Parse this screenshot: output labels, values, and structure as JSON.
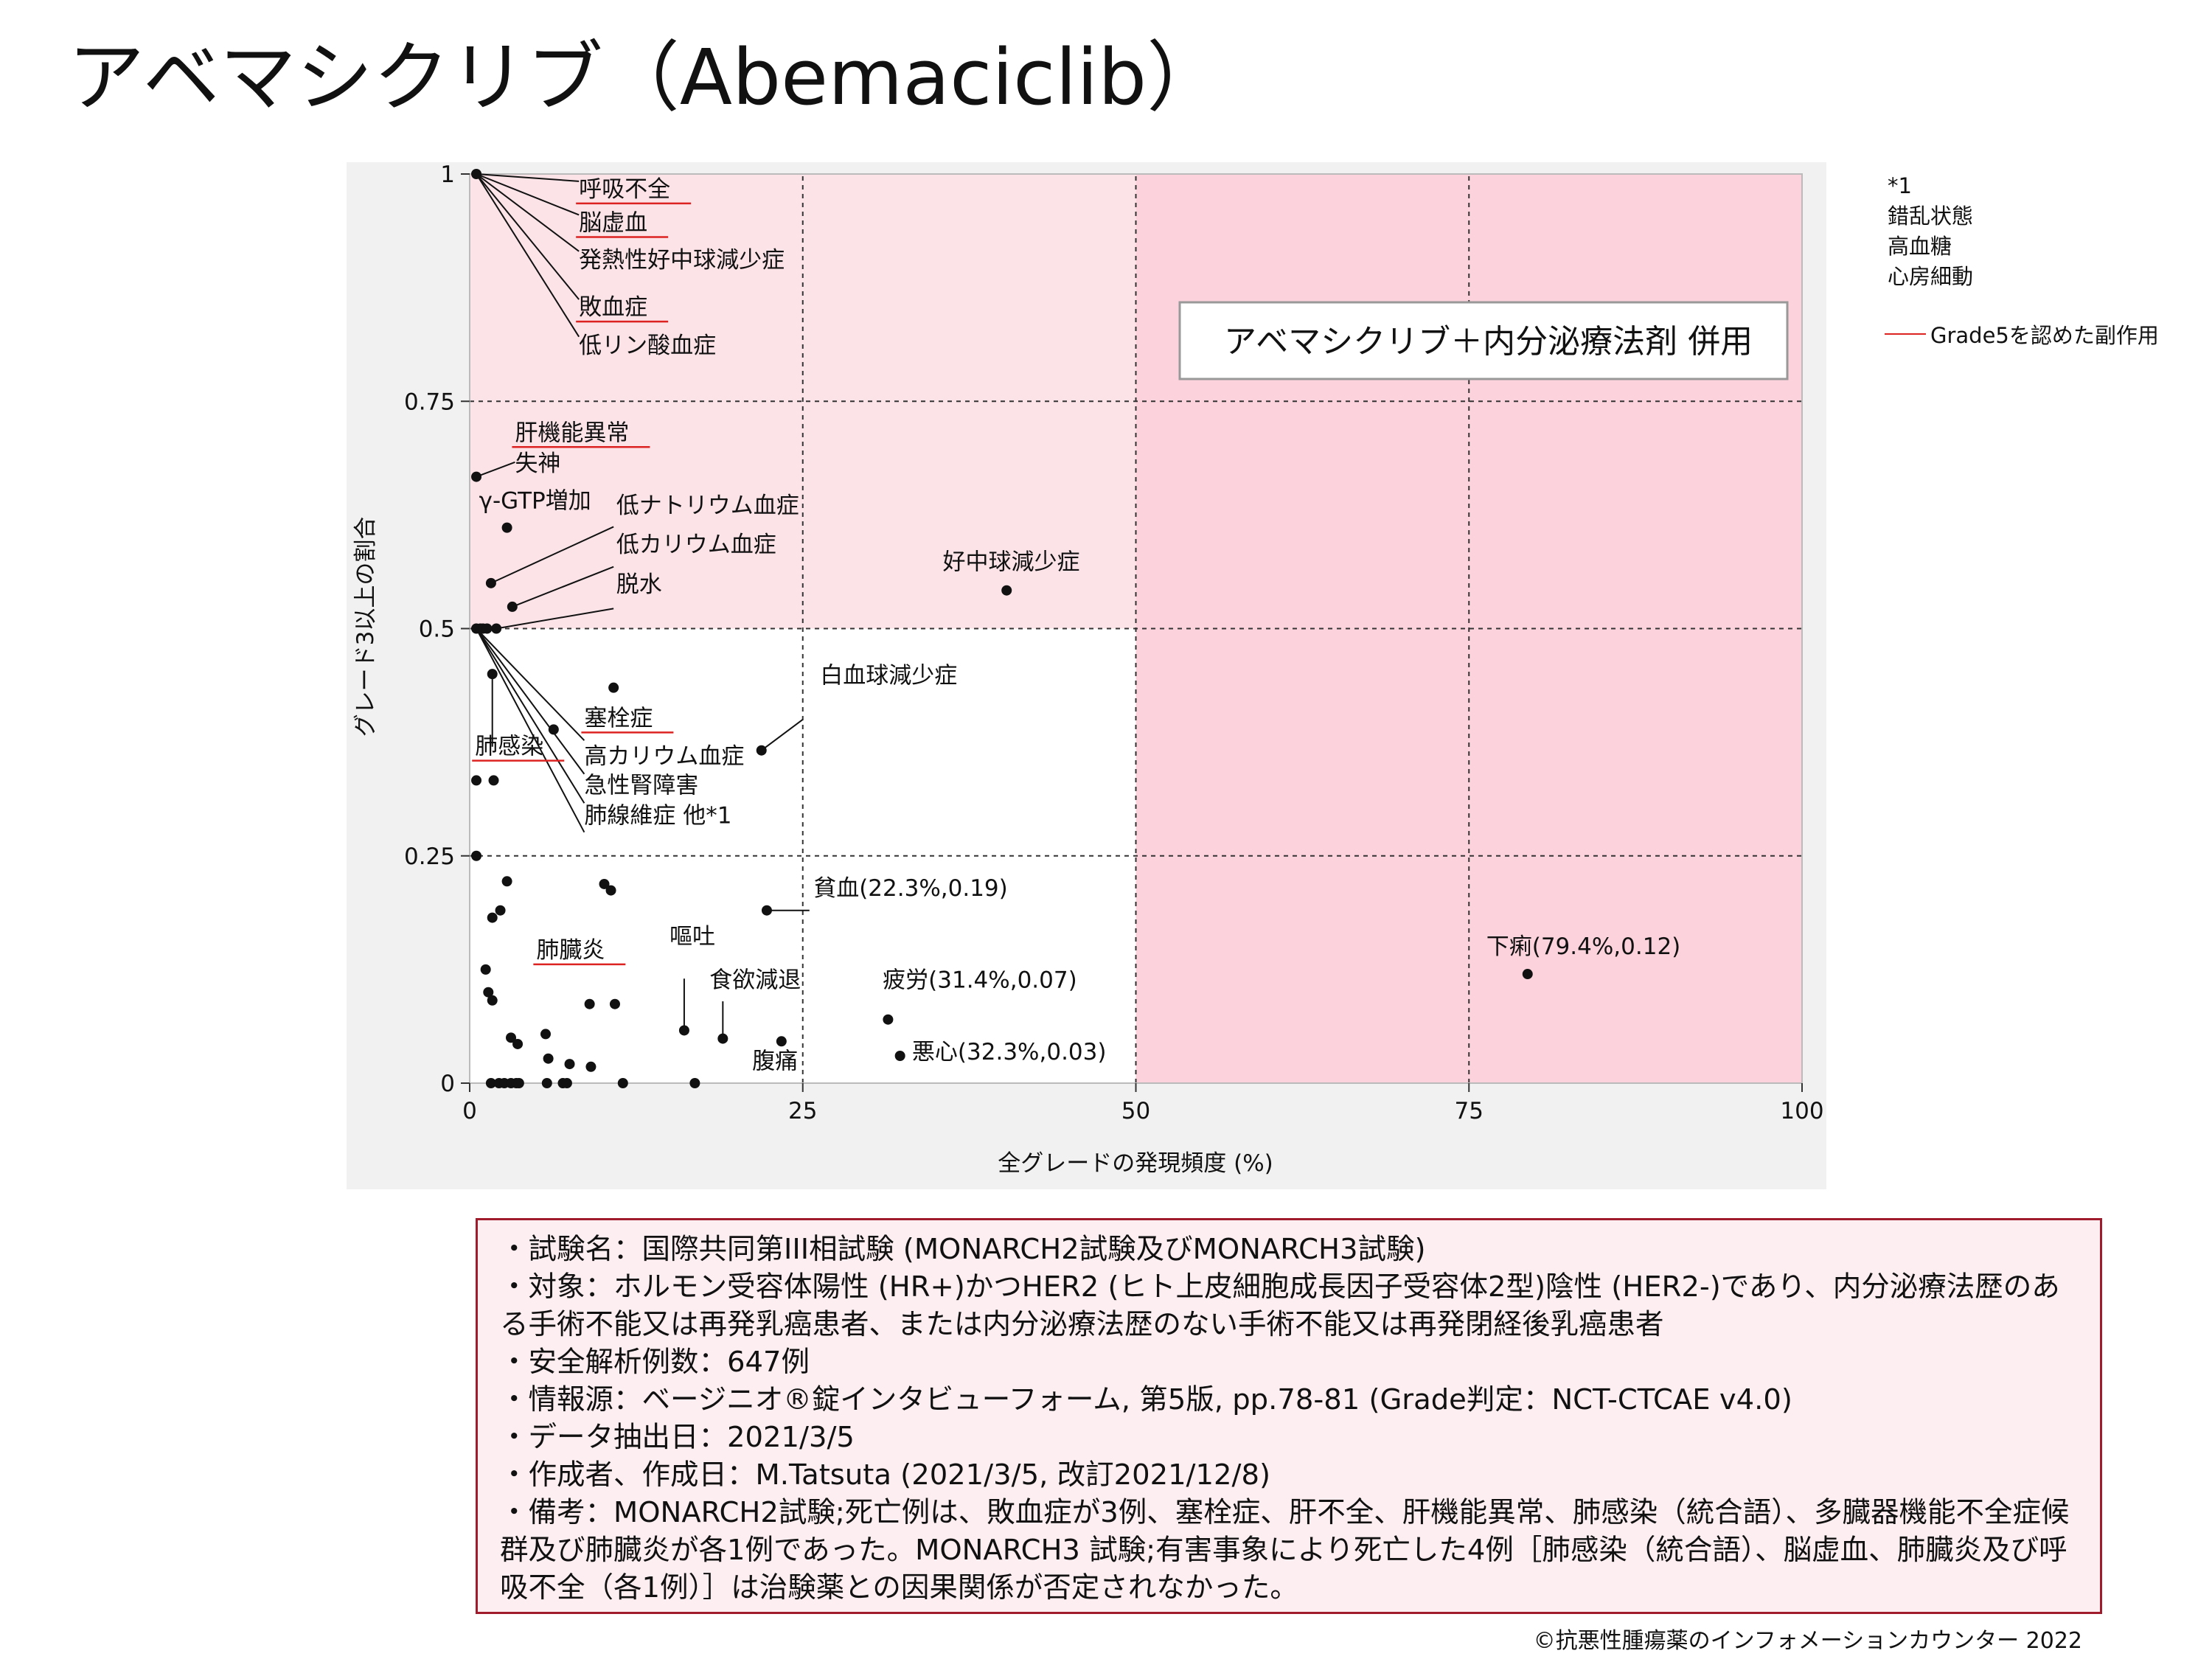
{
  "title": "アベマシクリブ（Abemaciclib）",
  "note_star": [
    "*1",
    "錯乱状態",
    "高血糖",
    "心房細動"
  ],
  "legend": {
    "grade5_label": "Grade5を認めた副作用",
    "grade5_color": "#dd2222"
  },
  "info_box": {
    "lines": [
      "・試験名：国際共同第III相試験 (MONARCH2試験及びMONARCH3試験)",
      "・対象：ホルモン受容体陽性 (HR+)かつHER2 (ヒト上皮細胞成長因子受容体2型)陰性 (HER2-)であり、内分泌療法歴のある手術不能又は再発乳癌患者、または内分泌療法歴のない手術不能又は再発閉経後乳癌患者",
      "・安全解析例数：647例",
      "・情報源：ベージニオ®錠インタビューフォーム, 第5版, pp.78-81 (Grade判定：NCT-CTCAE v4.0)",
      "・データ抽出日：2021/3/5",
      "・作成者、作成日：M.Tatsuta (2021/3/5, 改訂2021/12/8)",
      "・備考：MONARCH2試験;死亡例は、敗血症が3例、塞栓症、肝不全、肝機能異常、肺感染（統合語）、多臓器機能不全症候群及び肺臓炎が各1例であった。MONARCH3 試験;有害事象により死亡した4例［肺感染（統合語）、脳虚血、肺臓炎及び呼吸不全（各1例）］は治験薬との因果関係が否定されなかった。"
    ]
  },
  "copyright": "©抗悪性腫瘍薬のインフォメーションカウンター 2022",
  "chart_data": {
    "type": "scatter",
    "xlabel": "全グレードの発現頻度 (%)",
    "ylabel": "グレード3以上の割合",
    "xlim": [
      0,
      100
    ],
    "ylim": [
      0,
      1
    ],
    "x_ticks": [
      "0",
      "25",
      "50",
      "75",
      "100"
    ],
    "y_ticks": [
      "0",
      "0.25",
      "0.5",
      "0.75",
      "1"
    ],
    "grid": "dashed at 25, 50, 75",
    "colors": {
      "highlight": "#fbe3e8",
      "highlight_strong": "#fcd3dc",
      "plot_bg": "#f1f1f1",
      "grade5_underline": "#dd2222"
    },
    "inset_label": "アベマシクリブ＋内分泌療法剤 併用",
    "points": [
      {
        "x": 0.5,
        "y": 1.0
      },
      {
        "x": 0.5,
        "y": 0.667
      },
      {
        "x": 0.5,
        "y": 0.5
      },
      {
        "x": 0.5,
        "y": 0.333
      },
      {
        "x": 0.5,
        "y": 0.25
      },
      {
        "x": 0.8,
        "y": 0.5
      },
      {
        "x": 1.0,
        "y": 0.5
      },
      {
        "x": 1.3,
        "y": 0.5
      },
      {
        "x": 1.2,
        "y": 0.125
      },
      {
        "x": 1.4,
        "y": 0.1
      },
      {
        "x": 1.6,
        "y": 0.55
      },
      {
        "x": 1.6,
        "y": 0.0
      },
      {
        "x": 1.7,
        "y": 0.091
      },
      {
        "x": 1.7,
        "y": 0.45
      },
      {
        "x": 1.7,
        "y": 0.182
      },
      {
        "x": 1.8,
        "y": 0.333
      },
      {
        "x": 2.0,
        "y": 0.5
      },
      {
        "x": 2.2,
        "y": 0.0
      },
      {
        "x": 2.3,
        "y": 0.19
      },
      {
        "x": 2.6,
        "y": 0.0
      },
      {
        "x": 2.8,
        "y": 0.611
      },
      {
        "x": 2.8,
        "y": 0.222
      },
      {
        "x": 3.1,
        "y": 0.05
      },
      {
        "x": 3.1,
        "y": 0.0
      },
      {
        "x": 3.2,
        "y": 0.524
      },
      {
        "x": 3.5,
        "y": 0.0
      },
      {
        "x": 3.6,
        "y": 0.043
      },
      {
        "x": 3.7,
        "y": 0.0
      },
      {
        "x": 5.7,
        "y": 0.054
      },
      {
        "x": 5.8,
        "y": 0.0
      },
      {
        "x": 5.9,
        "y": 0.027
      },
      {
        "x": 6.3,
        "y": 0.389
      },
      {
        "x": 7.0,
        "y": 0.0
      },
      {
        "x": 7.3,
        "y": 0.0
      },
      {
        "x": 7.5,
        "y": 0.021
      },
      {
        "x": 9.0,
        "y": 0.087
      },
      {
        "x": 9.1,
        "y": 0.018
      },
      {
        "x": 10.1,
        "y": 0.219
      },
      {
        "x": 10.6,
        "y": 0.212
      },
      {
        "x": 10.8,
        "y": 0.435
      },
      {
        "x": 10.9,
        "y": 0.087
      },
      {
        "x": 11.5,
        "y": 0.0
      },
      {
        "x": 16.1,
        "y": 0.058
      },
      {
        "x": 16.9,
        "y": 0.0
      },
      {
        "x": 19.0,
        "y": 0.049
      },
      {
        "x": 21.9,
        "y": 0.366
      },
      {
        "x": 22.3,
        "y": 0.19
      },
      {
        "x": 23.4,
        "y": 0.046
      },
      {
        "x": 31.4,
        "y": 0.07
      },
      {
        "x": 32.3,
        "y": 0.03
      },
      {
        "x": 40.3,
        "y": 0.542
      },
      {
        "x": 79.4,
        "y": 0.12
      }
    ],
    "labels": [
      {
        "text": "呼吸不全",
        "x": 8.2,
        "y": 0.975,
        "grade5": true
      },
      {
        "text": "脳虚血",
        "x": 8.2,
        "y": 0.938,
        "grade5": true
      },
      {
        "text": "発熱性好中球減少症",
        "x": 8.2,
        "y": 0.897,
        "grade5": false
      },
      {
        "text": "敗血症",
        "x": 8.2,
        "y": 0.845,
        "grade5": true
      },
      {
        "text": "低リン酸血症",
        "x": 8.2,
        "y": 0.803,
        "grade5": false
      },
      {
        "text": "肝機能異常",
        "x": 3.4,
        "y": 0.707,
        "grade5": true
      },
      {
        "text": "失神",
        "x": 3.4,
        "y": 0.673,
        "grade5": false
      },
      {
        "text": "γ-GTP増加",
        "x": 0.7,
        "y": 0.632,
        "grade5": false
      },
      {
        "text": "低ナトリウム血症",
        "x": 11.0,
        "y": 0.627,
        "grade5": false
      },
      {
        "text": "低カリウム血症",
        "x": 11.0,
        "y": 0.584,
        "grade5": false
      },
      {
        "text": "脱水",
        "x": 11.0,
        "y": 0.54,
        "grade5": false
      },
      {
        "text": "好中球減少症",
        "x": 35.5,
        "y": 0.565,
        "grade5": false
      },
      {
        "text": "白血球減少症",
        "x": 26.3,
        "y": 0.44,
        "grade5": false
      },
      {
        "text": "塞栓症",
        "x": 8.6,
        "y": 0.393,
        "grade5": true
      },
      {
        "text": "肺感染",
        "x": 0.4,
        "y": 0.362,
        "grade5": true
      },
      {
        "text": "高カリウム血症",
        "x": 8.6,
        "y": 0.351,
        "grade5": false
      },
      {
        "text": "急性腎障害",
        "x": 8.6,
        "y": 0.319,
        "grade5": false
      },
      {
        "text": "肺線維症 他*1",
        "x": 8.6,
        "y": 0.286,
        "grade5": false
      },
      {
        "text": "貧血(22.3%,0.19)",
        "x": 25.8,
        "y": 0.206,
        "grade5": false
      },
      {
        "text": "肺臓炎",
        "x": 5.0,
        "y": 0.138,
        "grade5": true
      },
      {
        "text": "嘔吐",
        "x": 15.0,
        "y": 0.153,
        "grade5": false
      },
      {
        "text": "食欲減退",
        "x": 18.0,
        "y": 0.105,
        "grade5": false
      },
      {
        "text": "疲労(31.4%,0.07)",
        "x": 31.0,
        "y": 0.105,
        "grade5": false
      },
      {
        "text": "腹痛",
        "x": 21.2,
        "y": 0.016,
        "grade5": false
      },
      {
        "text": "悪心(32.3%,0.03)",
        "x": 33.2,
        "y": 0.026,
        "grade5": false
      },
      {
        "text": "下痢(79.4%,0.12)",
        "x": 76.3,
        "y": 0.142,
        "grade5": false
      }
    ],
    "leaders": [
      {
        "from": [
          0.5,
          1.0
        ],
        "to": [
          8.2,
          0.992
        ]
      },
      {
        "from": [
          0.5,
          1.0
        ],
        "to": [
          8.2,
          0.955
        ]
      },
      {
        "from": [
          0.5,
          1.0
        ],
        "to": [
          8.2,
          0.915
        ]
      },
      {
        "from": [
          0.5,
          1.0
        ],
        "to": [
          8.2,
          0.862
        ]
      },
      {
        "from": [
          0.5,
          1.0
        ],
        "to": [
          8.2,
          0.821
        ]
      },
      {
        "from": [
          0.5,
          0.667
        ],
        "to": [
          3.4,
          0.683
        ]
      },
      {
        "from": [
          1.6,
          0.55
        ],
        "to": [
          10.8,
          0.612
        ]
      },
      {
        "from": [
          3.2,
          0.524
        ],
        "to": [
          10.8,
          0.568
        ]
      },
      {
        "from": [
          2.0,
          0.5
        ],
        "to": [
          10.8,
          0.522
        ]
      },
      {
        "from": [
          1.7,
          0.45
        ],
        "to": [
          1.7,
          0.37
        ]
      },
      {
        "from": [
          0.5,
          0.5
        ],
        "to": [
          8.6,
          0.377
        ]
      },
      {
        "from": [
          0.5,
          0.5
        ],
        "to": [
          8.6,
          0.34
        ]
      },
      {
        "from": [
          0.5,
          0.5
        ],
        "to": [
          8.6,
          0.308
        ]
      },
      {
        "from": [
          0.5,
          0.5
        ],
        "to": [
          8.6,
          0.276
        ]
      },
      {
        "from": [
          21.9,
          0.366
        ],
        "to": [
          25.0,
          0.4
        ]
      },
      {
        "from": [
          22.3,
          0.19
        ],
        "to": [
          25.5,
          0.19
        ]
      },
      {
        "from": [
          16.1,
          0.058
        ],
        "to": [
          16.1,
          0.115
        ]
      },
      {
        "from": [
          19.0,
          0.049
        ],
        "to": [
          19.0,
          0.09
        ]
      }
    ]
  }
}
